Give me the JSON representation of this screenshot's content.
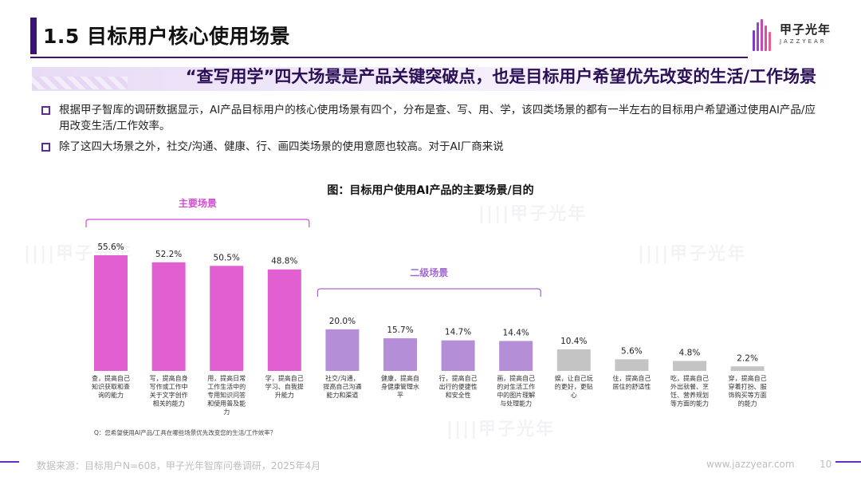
{
  "header": {
    "section_title": "1.5 目标用户核心使用场景",
    "subtitle": "“查写用学”四大场景是产品关键突破点，也是目标用户希望优先改变的生活/工作场景"
  },
  "logo": {
    "cn": "甲子光年",
    "en": "JAZZYEAR"
  },
  "bullets": [
    "根据甲子智库的调研数据显示，AI产品目标用户的核心使用场景有四个，分布是查、写、用、学，该四类场景的都有一半左右的目标用户希望通过使用AI产品/应用改变生活/工作效率。",
    "除了这四大场景之外，社交/沟通、健康、行、画四类场景的使用意愿也较高。对于AI厂商来说"
  ],
  "chart_data": {
    "type": "bar",
    "title": "图：目标用户使用AI产品的主要场景/目的",
    "categories": [
      "查，提高自己知识获取和查询的能力",
      "写，提高自身写作或工作中关于文字创作相关的能力",
      "用，提高日常工作生活中的专用知识问答和使用普及能力",
      "学，提高自己学习、自我提升能力",
      "社交/沟通，提高自己沟通能力和渠道",
      "健康，提高自身健康管理水平",
      "行，提高自己出行的便捷性和安全性",
      "画，提高自己的对生活工作中的图片理解与处理能力",
      "娱，让自己玩的更好，更贴心",
      "住，提高自己居住的舒适性",
      "吃，提高自己外出就餐、烹饪、营养规划等方面的能力",
      "穿，提高自己穿着打扮、服饰购买等方面的能力"
    ],
    "values": [
      55.6,
      52.2,
      50.5,
      48.8,
      20.0,
      15.7,
      14.7,
      14.4,
      10.4,
      5.6,
      4.8,
      2.2
    ],
    "value_labels": [
      "55.6%",
      "52.2%",
      "50.5%",
      "48.8%",
      "20.0%",
      "15.7%",
      "14.7%",
      "14.4%",
      "10.4%",
      "5.6%",
      "4.8%",
      "2.2%"
    ],
    "groups": [
      {
        "name": "主要场景",
        "start": 0,
        "end": 3,
        "color": "#e25fd2"
      },
      {
        "name": "二级场景",
        "start": 4,
        "end": 7,
        "color": "#b48fd8"
      },
      {
        "name": "",
        "start": 8,
        "end": 11,
        "color": "#c4c4c4"
      }
    ],
    "ylim": [
      0,
      60
    ],
    "xlabel": "",
    "ylabel": "",
    "grid": false
  },
  "question_note": "Q：您希望使用AI产品/工具在哪些场景优先改变您的生活/工作效率？",
  "footer": {
    "source": "数据来源：目标用户N=608，甲子光年智库问卷调研，2025年4月",
    "url": "www.jazzyear.com",
    "page": "10"
  },
  "colors": {
    "brand": "#3b1670",
    "primary_bar": "#e25fd2",
    "secondary_bar": "#b48fd8",
    "other_bar": "#c4c4c4",
    "bracket_primary": "#d24fcf",
    "bracket_secondary": "#a06ad0"
  }
}
